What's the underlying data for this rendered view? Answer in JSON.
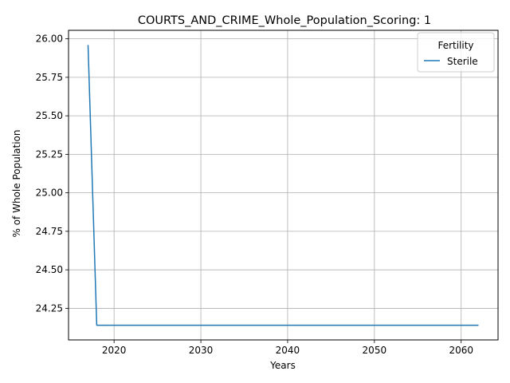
{
  "chart_data": {
    "type": "line",
    "title": "COURTS_AND_CRIME_Whole_Population_Scoring: 1",
    "xlabel": "Years",
    "ylabel": "% of Whole Population",
    "xlim": [
      2014.75,
      2064.25
    ],
    "ylim": [
      24.045,
      26.055
    ],
    "xticks": [
      2020,
      2030,
      2040,
      2050,
      2060
    ],
    "yticks": [
      24.25,
      24.5,
      24.75,
      25.0,
      25.25,
      25.5,
      25.75,
      26.0
    ],
    "ytick_labels": [
      "24.25",
      "24.50",
      "24.75",
      "25.00",
      "25.25",
      "25.50",
      "25.75",
      "26.00"
    ],
    "grid": true,
    "legend": {
      "title": "Fertility",
      "position": "top-right"
    },
    "series": [
      {
        "name": "Sterile",
        "color": "#1f77b4",
        "x": [
          2017,
          2018,
          2019,
          2020,
          2021,
          2022,
          2023,
          2024,
          2025,
          2026,
          2027,
          2028,
          2029,
          2030,
          2031,
          2032,
          2033,
          2034,
          2035,
          2036,
          2037,
          2038,
          2039,
          2040,
          2041,
          2042,
          2043,
          2044,
          2045,
          2046,
          2047,
          2048,
          2049,
          2050,
          2051,
          2052,
          2053,
          2054,
          2055,
          2056,
          2057,
          2058,
          2059,
          2060,
          2061,
          2062
        ],
        "y": [
          25.96,
          24.14,
          24.14,
          24.14,
          24.14,
          24.14,
          24.14,
          24.14,
          24.14,
          24.14,
          24.14,
          24.14,
          24.14,
          24.14,
          24.14,
          24.14,
          24.14,
          24.14,
          24.14,
          24.14,
          24.14,
          24.14,
          24.14,
          24.14,
          24.14,
          24.14,
          24.14,
          24.14,
          24.14,
          24.14,
          24.14,
          24.14,
          24.14,
          24.14,
          24.14,
          24.14,
          24.14,
          24.14,
          24.14,
          24.14,
          24.14,
          24.14,
          24.14,
          24.14,
          24.14,
          24.14
        ]
      }
    ]
  }
}
